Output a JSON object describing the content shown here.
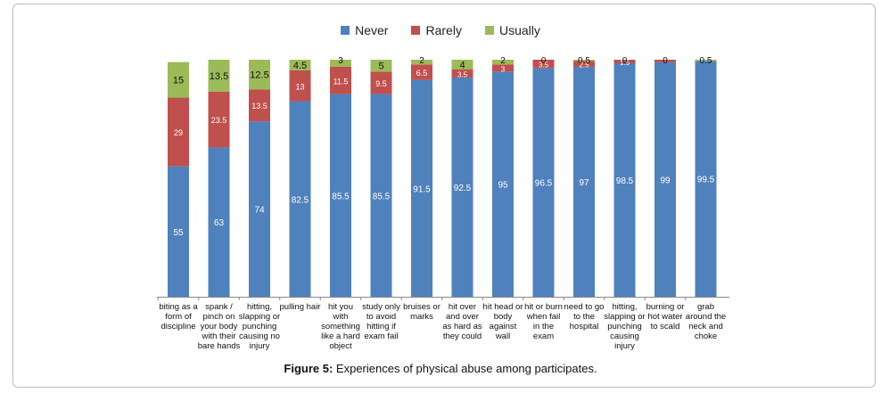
{
  "chart_data": {
    "type": "bar",
    "stacked": true,
    "categories": [
      "biting as a form of discipline",
      "spank / pinch on your body with their bare hands",
      "hitting, slapping or punching causing no injury",
      "pulling hair",
      "hit you with something like a hard object",
      "study only to avoid hitting if exam fail",
      "bruises or marks",
      "hit over and over as hard as they could",
      "hit head or body against wall",
      "hit or burn when fail in the exam",
      "need to go to the hospital",
      "hitting, slapping or punching causing injury",
      "burning or hot water to scald",
      "grab around the neck and choke"
    ],
    "category_lines": [
      [
        "biting as a",
        "form of",
        "discipline"
      ],
      [
        "spank /",
        "pinch  on",
        "your body",
        "with their",
        "bare hands"
      ],
      [
        "hitting,",
        "slapping or",
        "punching",
        "causing no",
        "injury"
      ],
      [
        "pulling hair"
      ],
      [
        "hit you",
        "with",
        "something",
        "like a hard",
        "object"
      ],
      [
        "study only",
        "to avoid",
        "hitting if",
        "exam fail"
      ],
      [
        "bruises or",
        "marks"
      ],
      [
        "hit over",
        "and over",
        "as hard as",
        "they could"
      ],
      [
        "hit head or",
        "body",
        "against",
        "wall"
      ],
      [
        "hit or burn",
        "when fail",
        "in the",
        "exam"
      ],
      [
        "need to go",
        "to the",
        "hospital"
      ],
      [
        "hitting,",
        "slapping or",
        "punching",
        "causing",
        "injury"
      ],
      [
        "burning or",
        "hot water",
        "to scald"
      ],
      [
        "grab",
        "around the",
        "neck and",
        "choke"
      ]
    ],
    "series": [
      {
        "name": "Never",
        "color": "#4f81bd",
        "values": [
          55,
          63,
          74,
          82.5,
          85.5,
          85.5,
          91.5,
          92.5,
          95,
          96.5,
          97,
          98.5,
          99,
          99.5
        ]
      },
      {
        "name": "Rarely",
        "color": "#c0504d",
        "values": [
          29,
          23.5,
          13.5,
          13,
          11.5,
          9.5,
          6.5,
          3.5,
          3,
          3.5,
          2.5,
          1.5,
          1,
          0
        ]
      },
      {
        "name": "Usually",
        "color": "#9bbb59",
        "values": [
          15,
          13.5,
          12.5,
          4.5,
          3,
          5,
          2,
          4,
          2,
          0,
          0.5,
          0,
          0,
          0.5
        ]
      }
    ],
    "labels": {
      "Never": [
        "55",
        "63",
        "74",
        "82.5",
        "85.5",
        "85.5",
        "91.5",
        "92.5",
        "95",
        "96.5",
        "97",
        "98.5",
        "99",
        "99.5"
      ],
      "Rarely": [
        "29",
        "23.5",
        "13.5",
        "13",
        "11.5",
        "9.5",
        "6.5",
        "3.5",
        "3",
        "3.5",
        "2.5",
        "1.5",
        "",
        ""
      ],
      "Usually": [
        "15",
        "13.5",
        "12.5",
        "4.5",
        "3",
        "5",
        "2",
        "4",
        "2",
        "0",
        "0.5",
        "0",
        "0",
        "0.5"
      ]
    },
    "ylim": [
      0,
      100
    ],
    "title": "",
    "xlabel": "",
    "ylabel": "",
    "legend_position": "top-center"
  },
  "legend": [
    {
      "label": "Never",
      "color": "#4f81bd"
    },
    {
      "label": "Rarely",
      "color": "#c0504d"
    },
    {
      "label": "Usually",
      "color": "#9bbb59"
    }
  ],
  "caption": {
    "figure_label": "Figure 5:",
    "text": " Experiences of physical abuse among participates."
  }
}
